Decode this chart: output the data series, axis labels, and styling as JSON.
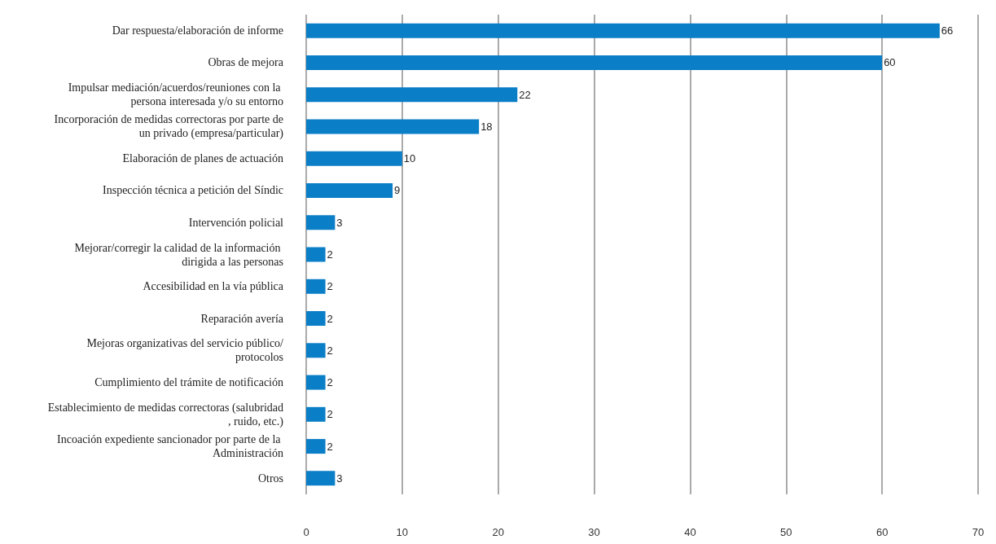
{
  "chart_data": {
    "type": "bar",
    "orientation": "horizontal",
    "categories": [
      "Dar respuesta/elaboración de informe",
      "Obras de mejora",
      "Impulsar mediación/acuerdos/reuniones con la persona interesada y/o su entorno",
      "Incorporación de medidas correctoras por parte de un privado (empresa/particular)",
      "Elaboración de planes de actuación",
      "Inspección técnica a petición del Síndic",
      "Intervención policial",
      "Mejorar/corregir la calidad de la información dirigida a las personas",
      "Accesibilidad en la vía pública",
      "Reparación avería",
      "Mejoras organizativas del servicio público/protocolos",
      "Cumplimiento del trámite de notificación",
      "Establecimiento de medidas correctoras (salubridad, ruido, etc.)",
      "Incoación expediente sancionador por parte de la Administración",
      "Otros"
    ],
    "values": [
      66,
      60,
      22,
      18,
      10,
      9,
      3,
      2,
      2,
      2,
      2,
      2,
      2,
      2,
      3
    ],
    "color": "#0a7ec6",
    "data_labels": true,
    "xlim": [
      0,
      70
    ],
    "xticks": [
      0,
      10,
      20,
      30,
      40,
      50,
      60,
      70
    ],
    "grid": "x"
  }
}
